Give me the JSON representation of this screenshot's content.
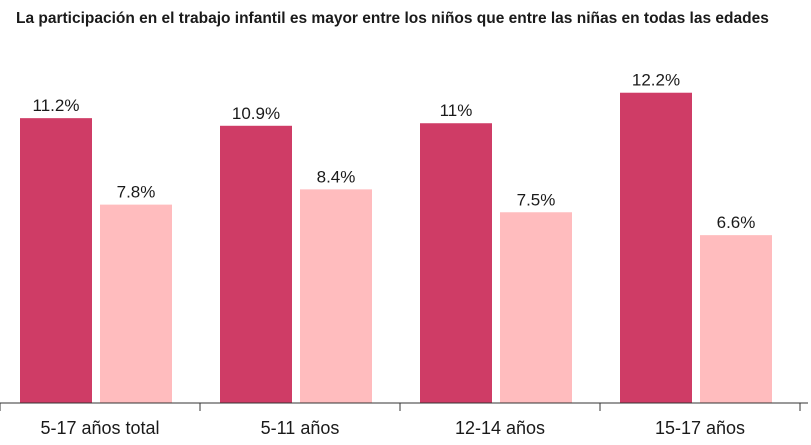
{
  "chart_data": {
    "type": "bar",
    "title": "La participación en el trabajo infantil es mayor entre los niños que entre las niñas en todas las edades",
    "categories": [
      "5-17 años total",
      "5-11 años",
      "12-14 años",
      "15-17 años"
    ],
    "series": [
      {
        "color": "#cf3c66",
        "values": [
          11.2,
          10.9,
          11,
          12.2
        ],
        "labels": [
          "11.2%",
          "10.9%",
          "11%",
          "12.2%"
        ]
      },
      {
        "color": "#ffbcbe",
        "values": [
          7.8,
          8.4,
          7.5,
          6.6
        ],
        "labels": [
          "7.8%",
          "8.4%",
          "7.5%",
          "6.6%"
        ]
      }
    ],
    "ylim": [
      0,
      12.7
    ],
    "grid": false,
    "legend": "none",
    "axis_color": "#333333"
  }
}
